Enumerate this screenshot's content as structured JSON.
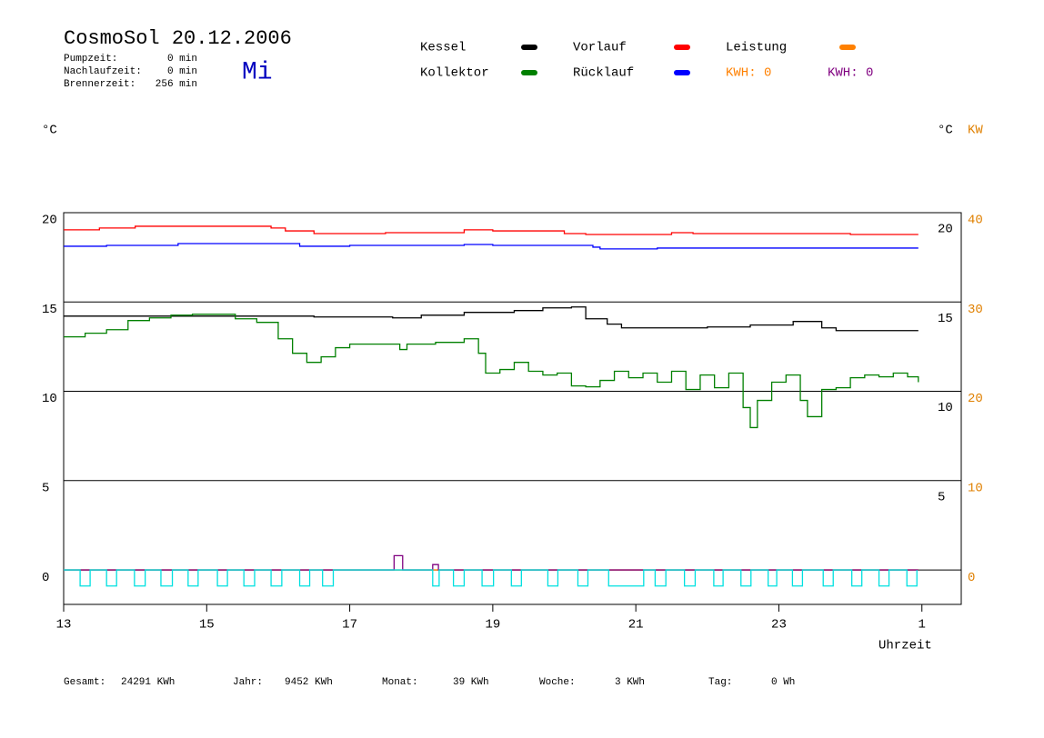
{
  "header": {
    "title": "CosmoSol 20.12.2006",
    "weekday": "Mi",
    "stats": [
      {
        "label": "Pumpzeit:",
        "value": "0 min"
      },
      {
        "label": "Nachlaufzeit:",
        "value": "0 min"
      },
      {
        "label": "Brennerzeit:",
        "value": "256 min"
      }
    ]
  },
  "footer": [
    {
      "label": "Gesamt:",
      "value": "24291 KWh"
    },
    {
      "label": "Jahr:",
      "value": "9452 KWh"
    },
    {
      "label": "Monat:",
      "value": "39 KWh"
    },
    {
      "label": "Woche:",
      "value": "3 KWh"
    },
    {
      "label": "Tag:",
      "value": "0 Wh"
    }
  ],
  "chart_data": {
    "type": "line",
    "ylabel": "°C",
    "ylabel_right": "°C",
    "y2label": "KW",
    "xlabel": "Uhrzeit",
    "xlim": [
      13,
      25.55
    ],
    "xticks": [
      13,
      15,
      17,
      19,
      21,
      23,
      {
        "value": 25,
        "label": "1"
      }
    ],
    "ylim": [
      -1.93,
      20
    ],
    "yticks": [
      0,
      5,
      10,
      15,
      20
    ],
    "yticks_right": [
      5,
      10,
      15,
      20
    ],
    "y2lim": [
      -3.86,
      40
    ],
    "y2ticks": [
      0,
      10,
      20,
      30,
      40
    ],
    "grid": true,
    "legend_notes": [
      {
        "text": "KWH: 0",
        "color": "#ff8000"
      },
      {
        "text": "KWH: 0",
        "color": "#800080"
      }
    ],
    "series": [
      {
        "name": "Kessel",
        "color": "#000000",
        "x": [
          13,
          16.5,
          17.6,
          18.0,
          18.6,
          19.3,
          19.7,
          20.1,
          20.3,
          20.6,
          20.8,
          22.0,
          22.6,
          23.2,
          23.6,
          23.8,
          24.95
        ],
        "values": [
          14.21,
          14.16,
          14.11,
          14.26,
          14.42,
          14.52,
          14.67,
          14.72,
          14.06,
          13.76,
          13.55,
          13.6,
          13.71,
          13.91,
          13.55,
          13.4,
          13.4
        ]
      },
      {
        "name": "Kollektor",
        "color": "#008000",
        "x": [
          13.0,
          13.3,
          13.6,
          13.9,
          14.2,
          14.5,
          14.8,
          15.1,
          15.4,
          15.7,
          16.0,
          16.2,
          16.4,
          16.6,
          16.8,
          17.0,
          17.6,
          17.7,
          17.8,
          18.2,
          18.6,
          18.8,
          18.9,
          19.1,
          19.3,
          19.5,
          19.7,
          19.9,
          20.1,
          20.3,
          20.5,
          20.7,
          20.9,
          21.1,
          21.3,
          21.5,
          21.7,
          21.9,
          22.1,
          22.3,
          22.5,
          22.6,
          22.7,
          22.9,
          23.1,
          23.3,
          23.4,
          23.6,
          23.8,
          24.0,
          24.2,
          24.4,
          24.6,
          24.8,
          24.95
        ],
        "values": [
          13.05,
          13.25,
          13.45,
          13.96,
          14.11,
          14.26,
          14.31,
          14.31,
          14.06,
          13.86,
          12.94,
          12.13,
          11.62,
          11.93,
          12.44,
          12.64,
          12.64,
          12.34,
          12.64,
          12.74,
          12.94,
          12.13,
          11.02,
          11.22,
          11.62,
          11.12,
          10.91,
          11.02,
          10.3,
          10.25,
          10.61,
          11.12,
          10.76,
          11.02,
          10.51,
          11.12,
          10.1,
          10.91,
          10.2,
          11.02,
          9.09,
          7.97,
          9.49,
          10.51,
          10.91,
          9.49,
          8.58,
          10.1,
          10.2,
          10.76,
          10.91,
          10.81,
          11.02,
          10.81,
          10.51
        ]
      },
      {
        "name": "Vorlauf",
        "color": "#ff0000",
        "x": [
          13,
          13.5,
          14.0,
          15.9,
          16.1,
          16.5,
          17.5,
          18.6,
          19.0,
          20.0,
          20.3,
          21.5,
          21.8,
          24.0,
          24.95
        ],
        "values": [
          19.04,
          19.14,
          19.24,
          19.14,
          18.98,
          18.83,
          18.88,
          19.04,
          18.98,
          18.83,
          18.78,
          18.88,
          18.83,
          18.78,
          18.78
        ]
      },
      {
        "name": "Rücklauf",
        "color": "#0000ff",
        "x": [
          13,
          13.6,
          14.6,
          16.3,
          17.0,
          18.6,
          19.0,
          20.4,
          20.5,
          21.3,
          24.95
        ],
        "values": [
          18.12,
          18.17,
          18.27,
          18.12,
          18.17,
          18.22,
          18.17,
          18.07,
          17.97,
          18.02,
          18.02
        ]
      },
      {
        "name": "Leistung",
        "color": "#ff8000",
        "axis": "y2",
        "x": [
          13,
          24.95
        ],
        "values": [
          0,
          0
        ]
      },
      {
        "color": "#800080",
        "x": [
          13,
          17.62,
          17.74,
          18.16,
          18.24,
          24.95
        ],
        "values": [
          0,
          0.8,
          0,
          0.3,
          0,
          0
        ]
      },
      {
        "color": "#00e0e0",
        "x": [
          13,
          13.23,
          13.37,
          13.6,
          13.74,
          13.99,
          14.14,
          14.36,
          14.52,
          14.74,
          14.88,
          15.15,
          15.29,
          15.52,
          15.67,
          15.9,
          16.05,
          16.3,
          16.44,
          16.62,
          16.77,
          18.16,
          18.25,
          18.45,
          18.6,
          18.85,
          19.01,
          19.26,
          19.4,
          19.77,
          19.91,
          20.19,
          20.33,
          20.62,
          21.11,
          21.27,
          21.42,
          21.68,
          21.83,
          22.09,
          22.22,
          22.47,
          22.61,
          22.85,
          22.97,
          23.19,
          23.33,
          23.62,
          23.76,
          24.02,
          24.16,
          24.4,
          24.54,
          24.79,
          24.93
        ],
        "values": [
          0,
          -0.9,
          0,
          -0.9,
          0,
          -0.9,
          0,
          -0.9,
          0,
          -0.9,
          0,
          -0.9,
          0,
          -0.9,
          0,
          -0.9,
          0,
          -0.9,
          0,
          -0.9,
          0,
          -0.9,
          0,
          -0.9,
          0,
          -0.9,
          0,
          -0.9,
          0,
          -0.9,
          0,
          -0.9,
          0,
          -0.9,
          0,
          -0.9,
          0,
          -0.9,
          0,
          -0.9,
          0,
          -0.9,
          0,
          -0.9,
          0,
          -0.9,
          0,
          -0.9,
          0,
          -0.9,
          0,
          -0.9,
          0,
          -0.9,
          0
        ]
      }
    ]
  }
}
